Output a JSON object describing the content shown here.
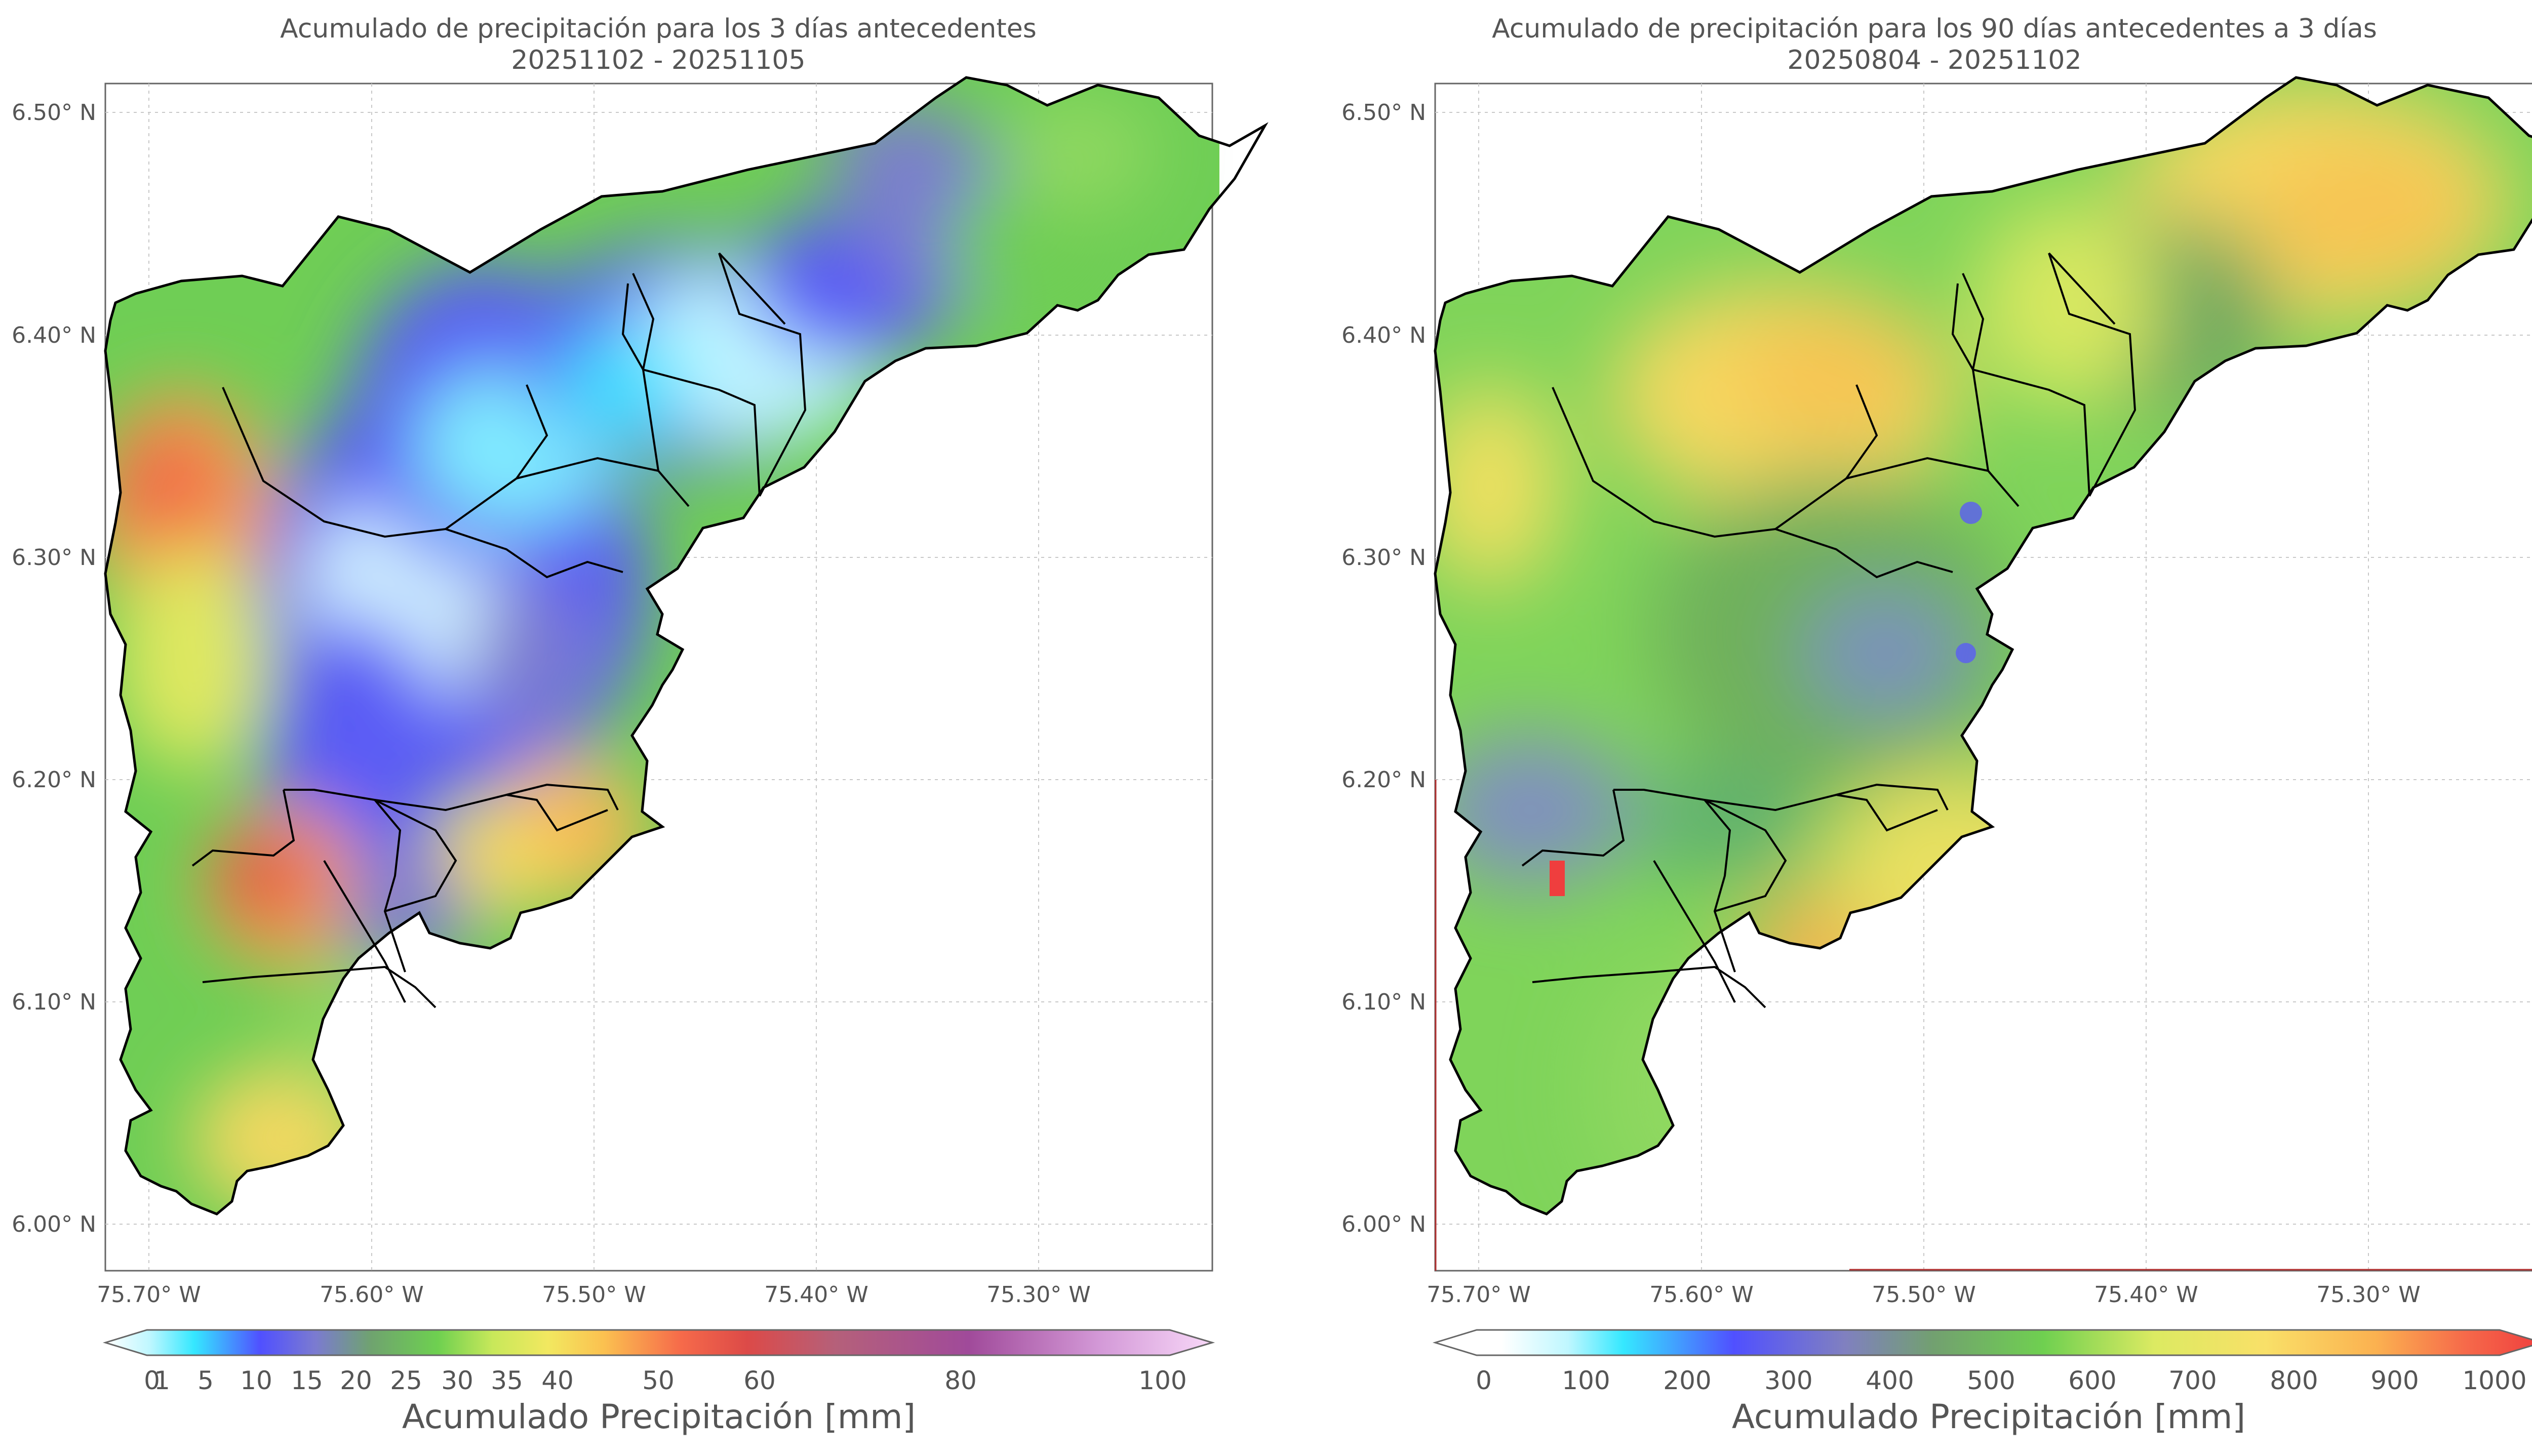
{
  "left_panel": {
    "title_line1": "Acumulado de precipitación para los 3 días antecedentes",
    "title_line2": "20251102 - 20251105",
    "lat_ticks": [
      "6.50° N",
      "6.40° N",
      "6.30° N",
      "6.20° N",
      "6.10° N",
      "6.00° N"
    ],
    "lon_ticks": [
      "75.70° W",
      "75.60° W",
      "75.50° W",
      "75.40° W",
      "75.30° W"
    ],
    "colorbar": {
      "label": "Acumulado Precipitación [mm]",
      "ticks": [
        "0",
        "1",
        "5",
        "10",
        "15",
        "20",
        "25",
        "30",
        "35",
        "40",
        "50",
        "60",
        "80",
        "100"
      ]
    }
  },
  "right_panel": {
    "title_line1": "Acumulado de precipitación para los 90 días antecedentes a 3 días",
    "title_line2": "20250804 - 20251102",
    "lat_ticks": [
      "6.50° N",
      "6.40° N",
      "6.30° N",
      "6.20° N",
      "6.10° N",
      "6.00° N"
    ],
    "lon_ticks": [
      "75.70° W",
      "75.60° W",
      "75.50° W",
      "75.40° W",
      "75.30° W"
    ],
    "colorbar": {
      "label": "Acumulado Precipitación [mm]",
      "ticks": [
        "0",
        "100",
        "200",
        "300",
        "400",
        "500",
        "600",
        "700",
        "800",
        "900",
        "1000"
      ]
    }
  },
  "colors": {
    "frame": "#666666",
    "grid": "#c8c8c8",
    "boundary": "#000000"
  }
}
